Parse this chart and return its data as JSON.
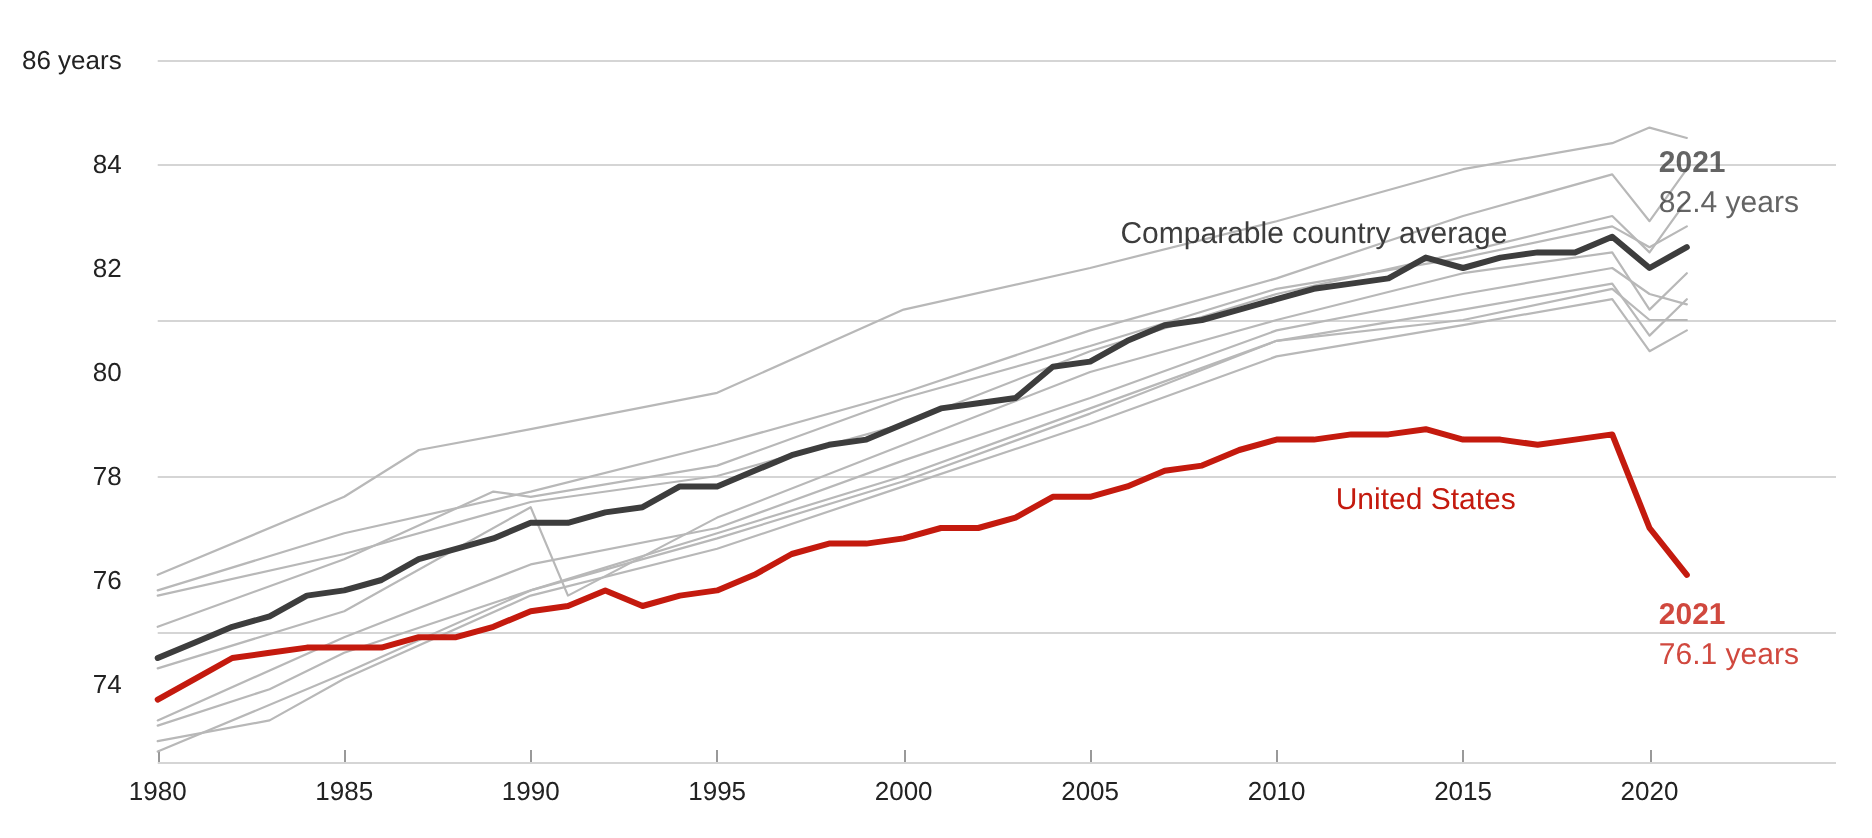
{
  "chart_data": {
    "type": "line",
    "xlim": [
      1980,
      2025
    ],
    "xticks": [
      1980,
      1985,
      1990,
      1995,
      2000,
      2005,
      2010,
      2015,
      2020
    ],
    "ylim": [
      72.5,
      86
    ],
    "yticks": [
      74,
      76,
      78,
      80,
      82,
      84,
      {
        "value": 86,
        "label": "86 years"
      }
    ],
    "grid": "y",
    "legend": false,
    "marker": "none",
    "line_style": "solid",
    "series": [
      {
        "color": "#b8b8b8",
        "x": [
          1980,
          1985,
          1987,
          1990,
          1995,
          2000,
          2005,
          2010,
          2015,
          2019,
          2020,
          2021
        ],
        "values": [
          76.1,
          77.6,
          78.5,
          78.9,
          79.6,
          81.2,
          82.0,
          82.9,
          83.9,
          84.4,
          84.7,
          84.5
        ]
      },
      {
        "color": "#b8b8b8",
        "x": [
          1980,
          1985,
          1990,
          1995,
          2000,
          2005,
          2010,
          2015,
          2019,
          2020,
          2021
        ],
        "values": [
          75.8,
          76.9,
          77.7,
          78.6,
          79.6,
          80.8,
          81.8,
          83.0,
          83.8,
          82.9,
          83.9
        ]
      },
      {
        "color": "#b8b8b8",
        "x": [
          1980,
          1985,
          1990,
          1995,
          2000,
          2005,
          2010,
          2015,
          2019,
          2020,
          2021
        ],
        "values": [
          75.7,
          76.5,
          77.5,
          78.0,
          79.0,
          80.4,
          81.5,
          82.3,
          83.0,
          82.3,
          83.3
        ]
      },
      {
        "color": "#b8b8b8",
        "x": [
          1980,
          1985,
          1989,
          1990,
          1995,
          2000,
          2005,
          2010,
          2015,
          2019,
          2020,
          2021
        ],
        "values": [
          75.1,
          76.4,
          77.7,
          77.6,
          78.2,
          79.5,
          80.5,
          81.6,
          82.2,
          82.8,
          82.4,
          82.8
        ]
      },
      {
        "color": "#b8b8b8",
        "x": [
          1980,
          1985,
          1990,
          1991,
          1995,
          2000,
          2005,
          2010,
          2015,
          2019,
          2020,
          2021
        ],
        "values": [
          74.3,
          75.4,
          77.4,
          75.7,
          77.2,
          78.6,
          80.0,
          81.0,
          81.9,
          82.3,
          81.2,
          81.9
        ]
      },
      {
        "color": "#b8b8b8",
        "x": [
          1980,
          1985,
          1990,
          1995,
          2000,
          2005,
          2010,
          2015,
          2019,
          2020,
          2021
        ],
        "values": [
          73.3,
          74.9,
          76.3,
          77.0,
          78.3,
          79.5,
          80.8,
          81.5,
          82.0,
          81.5,
          81.3
        ]
      },
      {
        "color": "#b8b8b8",
        "x": [
          1980,
          1983,
          1985,
          1990,
          1995,
          2000,
          2005,
          2010,
          2015,
          2019,
          2020,
          2021
        ],
        "values": [
          73.2,
          73.9,
          74.6,
          75.8,
          76.8,
          77.9,
          79.2,
          80.6,
          81.2,
          81.7,
          80.7,
          81.4
        ]
      },
      {
        "color": "#b8b8b8",
        "x": [
          1980,
          1983,
          1985,
          1990,
          1995,
          2000,
          2005,
          2010,
          2015,
          2019,
          2020,
          2021
        ],
        "values": [
          72.9,
          73.3,
          74.1,
          75.7,
          76.6,
          77.8,
          79.0,
          80.3,
          80.9,
          81.4,
          80.4,
          80.8
        ]
      },
      {
        "color": "#b8b8b8",
        "x": [
          1980,
          1985,
          1990,
          1995,
          2000,
          2005,
          2010,
          2015,
          2019,
          2020,
          2021
        ],
        "values": [
          72.7,
          74.2,
          75.8,
          76.9,
          78.0,
          79.3,
          80.6,
          81.0,
          81.6,
          81.0,
          81.0
        ]
      },
      {
        "name": "Comparable country average",
        "color": "#3d3d3d",
        "x": [
          1980,
          1981,
          1982,
          1983,
          1984,
          1985,
          1986,
          1987,
          1988,
          1989,
          1990,
          1991,
          1992,
          1993,
          1994,
          1995,
          1996,
          1997,
          1998,
          1999,
          2000,
          2001,
          2002,
          2003,
          2004,
          2005,
          2006,
          2007,
          2008,
          2009,
          2010,
          2011,
          2012,
          2013,
          2014,
          2015,
          2016,
          2017,
          2018,
          2019,
          2020,
          2021
        ],
        "values": [
          74.5,
          74.8,
          75.1,
          75.3,
          75.7,
          75.8,
          76.0,
          76.4,
          76.6,
          76.8,
          77.1,
          77.1,
          77.3,
          77.4,
          77.8,
          77.8,
          78.1,
          78.4,
          78.6,
          78.7,
          79.0,
          79.3,
          79.4,
          79.5,
          80.1,
          80.2,
          80.6,
          80.9,
          81.0,
          81.2,
          81.4,
          81.6,
          81.7,
          81.8,
          82.2,
          82.0,
          82.2,
          82.3,
          82.3,
          82.6,
          82.0,
          82.4
        ]
      },
      {
        "name": "United States",
        "color": "#c41a0e",
        "x": [
          1980,
          1981,
          1982,
          1983,
          1984,
          1985,
          1986,
          1987,
          1988,
          1989,
          1990,
          1991,
          1992,
          1993,
          1994,
          1995,
          1996,
          1997,
          1998,
          1999,
          2000,
          2001,
          2002,
          2003,
          2004,
          2005,
          2006,
          2007,
          2008,
          2009,
          2010,
          2011,
          2012,
          2013,
          2014,
          2015,
          2016,
          2017,
          2018,
          2019,
          2020,
          2021
        ],
        "values": [
          73.7,
          74.1,
          74.5,
          74.6,
          74.7,
          74.7,
          74.7,
          74.9,
          74.9,
          75.1,
          75.4,
          75.5,
          75.8,
          75.5,
          75.7,
          75.8,
          76.1,
          76.5,
          76.7,
          76.7,
          76.8,
          77.0,
          77.0,
          77.2,
          77.6,
          77.6,
          77.8,
          78.1,
          78.2,
          78.5,
          78.7,
          78.7,
          78.8,
          78.8,
          78.9,
          78.7,
          78.7,
          78.6,
          78.7,
          78.8,
          77.0,
          76.1
        ]
      }
    ],
    "annotations": [
      {
        "text": "2021\n82.4 years",
        "x": 2021,
        "y": 82.4
      },
      {
        "text": "2021\n76.1 years",
        "x": 2021,
        "y": 76.1
      }
    ]
  }
}
